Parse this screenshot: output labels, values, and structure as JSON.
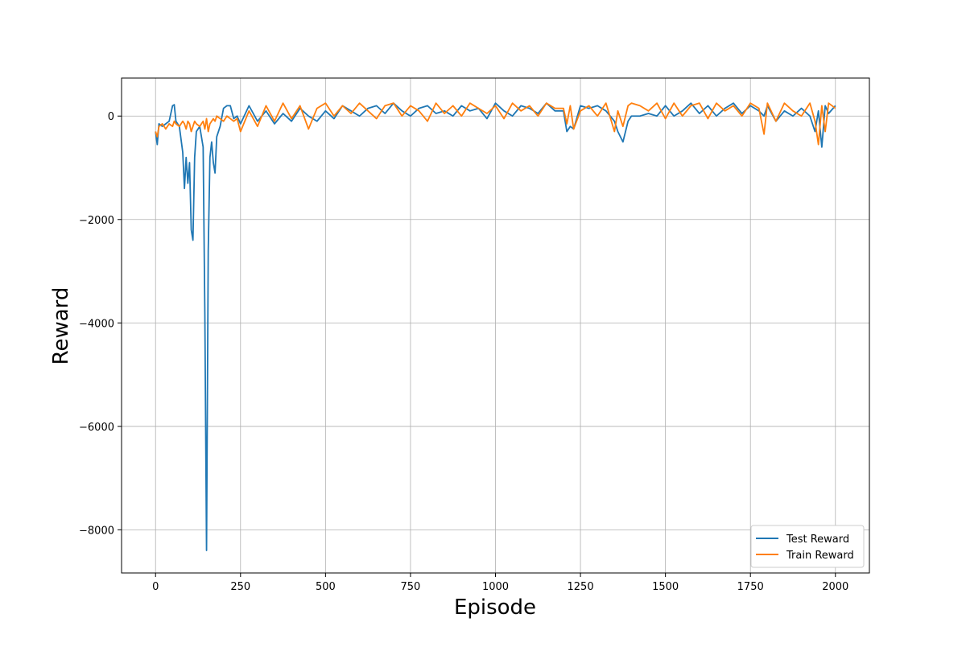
{
  "chart_data": {
    "type": "line",
    "xlabel": "Episode",
    "ylabel": "Reward",
    "x": [
      0,
      5,
      10,
      20,
      30,
      40,
      50,
      55,
      60,
      70,
      80,
      85,
      90,
      95,
      100,
      105,
      110,
      115,
      120,
      130,
      140,
      145,
      150,
      155,
      160,
      165,
      170,
      175,
      180,
      190,
      200,
      210,
      220,
      230,
      240,
      250,
      275,
      300,
      325,
      350,
      375,
      400,
      425,
      450,
      475,
      500,
      525,
      550,
      575,
      600,
      625,
      650,
      675,
      700,
      725,
      750,
      775,
      800,
      825,
      850,
      875,
      900,
      925,
      950,
      975,
      1000,
      1025,
      1050,
      1075,
      1100,
      1125,
      1150,
      1175,
      1200,
      1210,
      1220,
      1230,
      1250,
      1275,
      1300,
      1325,
      1350,
      1360,
      1375,
      1390,
      1400,
      1425,
      1450,
      1475,
      1500,
      1525,
      1550,
      1575,
      1600,
      1625,
      1650,
      1675,
      1700,
      1725,
      1750,
      1775,
      1790,
      1800,
      1825,
      1850,
      1875,
      1900,
      1925,
      1940,
      1950,
      1960,
      1970,
      1980,
      2000
    ],
    "series": [
      {
        "name": "Test Reward",
        "color": "#1f77b4",
        "values": [
          -300,
          -550,
          -150,
          -200,
          -150,
          -100,
          200,
          220,
          -100,
          -200,
          -700,
          -1400,
          -800,
          -1300,
          -900,
          -2200,
          -2400,
          -800,
          -300,
          -200,
          -600,
          -3800,
          -8400,
          -2600,
          -800,
          -500,
          -900,
          -1100,
          -400,
          -200,
          150,
          200,
          200,
          -50,
          0,
          -150,
          200,
          -100,
          100,
          -150,
          50,
          -100,
          150,
          0,
          -100,
          100,
          -50,
          200,
          100,
          0,
          150,
          200,
          50,
          250,
          100,
          0,
          150,
          200,
          50,
          100,
          0,
          200,
          100,
          150,
          -50,
          250,
          100,
          0,
          200,
          150,
          50,
          250,
          100,
          100,
          -300,
          -200,
          -250,
          200,
          150,
          200,
          100,
          -100,
          -300,
          -500,
          -100,
          0,
          0,
          50,
          0,
          200,
          0,
          100,
          250,
          50,
          200,
          0,
          150,
          250,
          50,
          200,
          100,
          0,
          200,
          -100,
          100,
          0,
          150,
          0,
          -300,
          100,
          -600,
          200,
          50,
          200
        ]
      },
      {
        "name": "Train Reward",
        "color": "#ff7f0e",
        "values": [
          -300,
          -400,
          -200,
          -150,
          -250,
          -150,
          -200,
          -100,
          -150,
          -200,
          -100,
          -150,
          -250,
          -100,
          -150,
          -300,
          -200,
          -100,
          -150,
          -200,
          -100,
          -250,
          -50,
          -300,
          -150,
          -100,
          -50,
          -100,
          0,
          -50,
          -100,
          0,
          -50,
          -100,
          -50,
          -300,
          100,
          -200,
          200,
          -100,
          250,
          -50,
          200,
          -250,
          150,
          250,
          0,
          200,
          50,
          250,
          100,
          -50,
          200,
          250,
          0,
          200,
          100,
          -100,
          250,
          50,
          200,
          0,
          250,
          150,
          50,
          200,
          -50,
          250,
          100,
          200,
          0,
          250,
          150,
          150,
          -150,
          200,
          -250,
          100,
          200,
          0,
          250,
          -300,
          100,
          -200,
          200,
          250,
          200,
          100,
          250,
          -50,
          250,
          0,
          200,
          250,
          -50,
          250,
          100,
          200,
          0,
          250,
          150,
          -350,
          250,
          -100,
          250,
          100,
          0,
          250,
          -100,
          -550,
          200,
          -300,
          250,
          150
        ]
      }
    ],
    "xlim": [
      -100,
      2100
    ],
    "ylim": [
      -8835,
      735
    ],
    "xticks": [
      0,
      250,
      500,
      750,
      1000,
      1250,
      1500,
      1750,
      2000
    ],
    "yticks": [
      {
        "value": -8000,
        "label": "−8000"
      },
      {
        "value": -6000,
        "label": "−6000"
      },
      {
        "value": -4000,
        "label": "−4000"
      },
      {
        "value": -2000,
        "label": "−2000"
      },
      0
    ],
    "grid": true,
    "legend": "lower right"
  }
}
